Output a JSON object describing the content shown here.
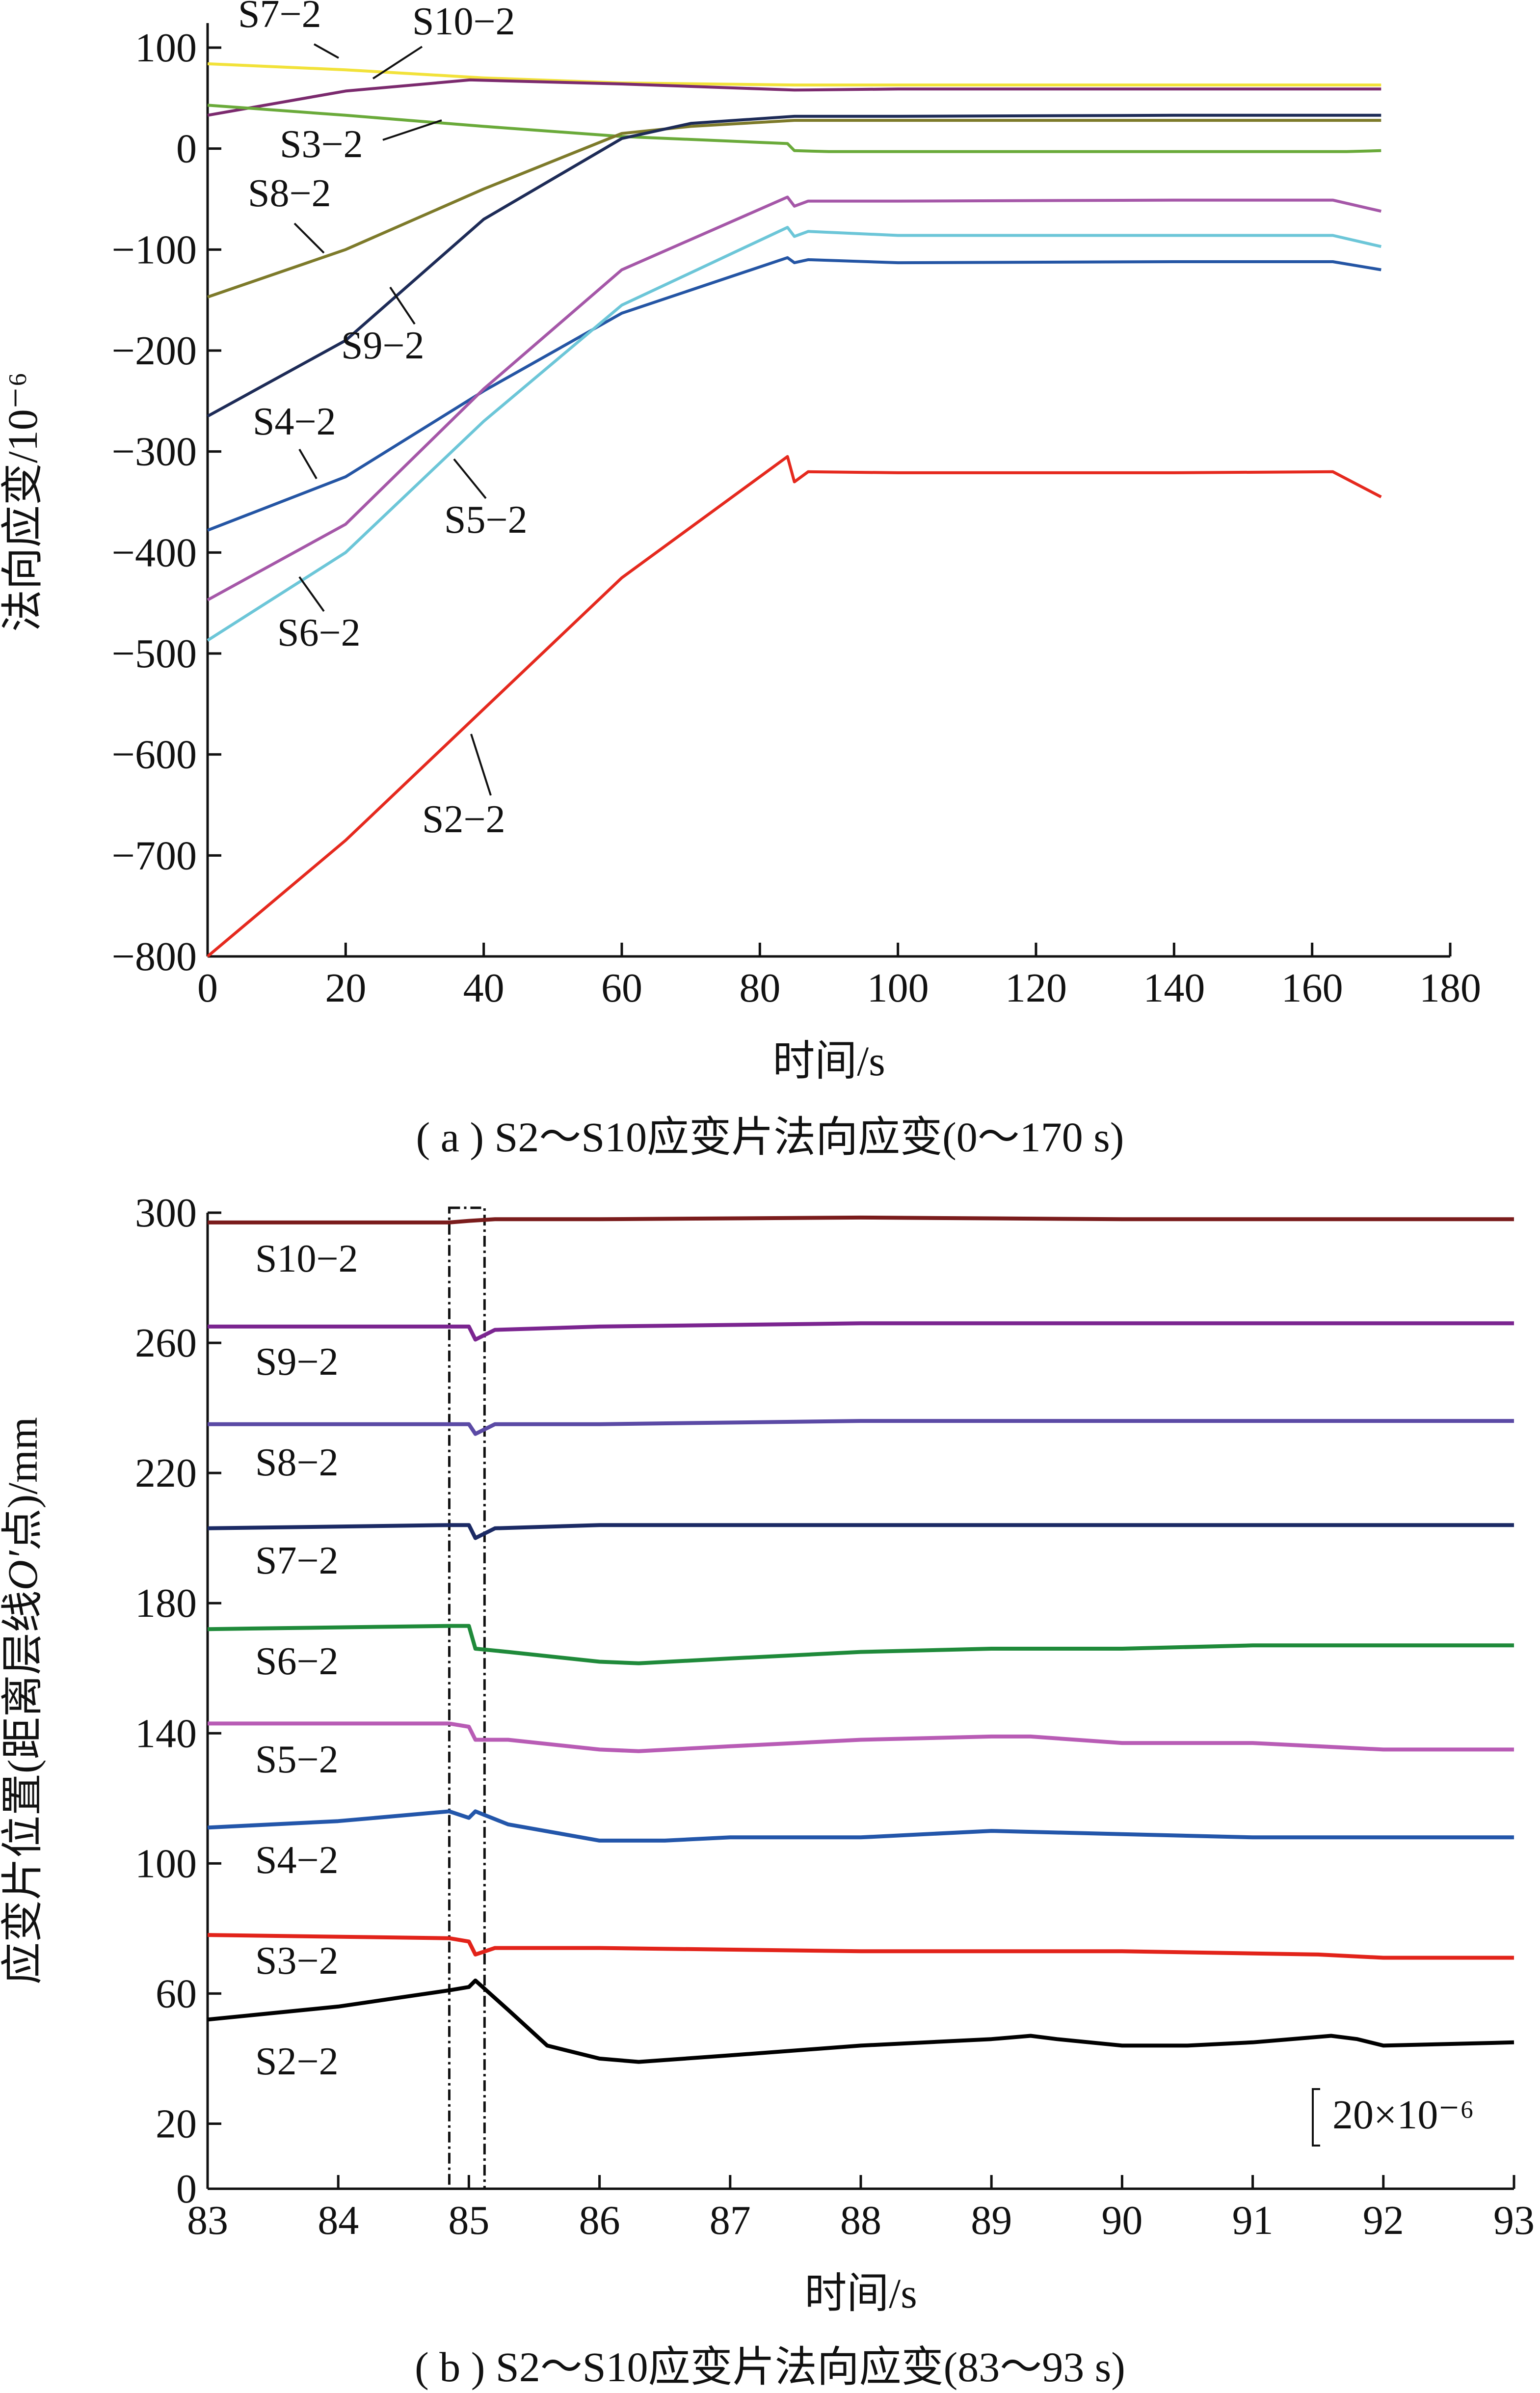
{
  "chart_data": [
    {
      "type": "line",
      "caption": "( a ) S2～S10应变片法向应变(0～170 s)",
      "xlabel": "时间/s",
      "ylabel": "法向应变/10⁻⁶",
      "xlim": [
        0,
        180
      ],
      "ylim": [
        -800,
        100
      ],
      "xticks": [
        "0",
        "20",
        "40",
        "60",
        "80",
        "100",
        "120",
        "140",
        "160",
        "180"
      ],
      "yticks": [
        "100",
        "0",
        "−100",
        "−200",
        "−300",
        "−400",
        "−500",
        "−600",
        "−700",
        "−800"
      ],
      "grid": false,
      "series": [
        {
          "name": "S7−2",
          "color": "#f2e23a",
          "x": [
            0,
            20,
            40,
            60,
            85,
            100,
            140,
            165,
            170
          ],
          "y": [
            84,
            78,
            70,
            65,
            63,
            63,
            63,
            63,
            63
          ]
        },
        {
          "name": "S10−2",
          "color": "#7b2a6e",
          "x": [
            0,
            20,
            38,
            60,
            85,
            100,
            140,
            165,
            170
          ],
          "y": [
            33,
            57,
            68,
            64,
            58,
            59,
            59,
            59,
            59
          ]
        },
        {
          "name": "S3−2",
          "color": "#6aaa3a",
          "x": [
            0,
            20,
            40,
            60,
            84,
            85,
            90,
            140,
            165,
            170
          ],
          "y": [
            43,
            33,
            22,
            12,
            5,
            -2,
            -3,
            -3,
            -3,
            -2
          ]
        },
        {
          "name": "S8−2",
          "color": "#7d7a2a",
          "x": [
            0,
            20,
            40,
            60,
            70,
            85,
            100,
            140,
            165,
            170
          ],
          "y": [
            -147,
            -100,
            -40,
            15,
            22,
            28,
            28,
            28,
            28,
            28
          ]
        },
        {
          "name": "S9−2",
          "color": "#1d2b57",
          "x": [
            0,
            20,
            40,
            60,
            70,
            85,
            100,
            140,
            165,
            170
          ],
          "y": [
            -265,
            -190,
            -70,
            10,
            25,
            32,
            32,
            33,
            33,
            33
          ]
        },
        {
          "name": "S4−2",
          "color": "#2455a4",
          "x": [
            0,
            20,
            40,
            60,
            84,
            85,
            87,
            100,
            140,
            163,
            170
          ],
          "y": [
            -378,
            -325,
            -240,
            -163,
            -108,
            -113,
            -110,
            -113,
            -112,
            -112,
            -120
          ]
        },
        {
          "name": "S5−2",
          "color": "#a557a8",
          "x": [
            0,
            20,
            40,
            60,
            84,
            85,
            87,
            100,
            140,
            163,
            170
          ],
          "y": [
            -447,
            -372,
            -238,
            -120,
            -48,
            -57,
            -52,
            -52,
            -51,
            -51,
            -62
          ]
        },
        {
          "name": "S6−2",
          "color": "#6cc6d8",
          "x": [
            0,
            20,
            40,
            60,
            84,
            85,
            87,
            100,
            140,
            163,
            170
          ],
          "y": [
            -487,
            -400,
            -270,
            -155,
            -78,
            -87,
            -82,
            -86,
            -86,
            -86,
            -97
          ]
        },
        {
          "name": "S2−2",
          "color": "#e5291e",
          "x": [
            0,
            20,
            40,
            60,
            84,
            85,
            87,
            100,
            140,
            163,
            170
          ],
          "y": [
            -800,
            -685,
            -555,
            -425,
            -305,
            -330,
            -320,
            -321,
            -321,
            -320,
            -345
          ]
        }
      ]
    },
    {
      "type": "line",
      "caption": "( b ) S2～S10应变片法向应变(83～93 s)",
      "xlabel": "时间/s",
      "ylabel_parts": [
        "应变片位置(距离层线",
        "O′",
        "点)/mm"
      ],
      "xlim": [
        83,
        93
      ],
      "ylim": [
        0,
        300
      ],
      "xticks": [
        "83",
        "84",
        "85",
        "86",
        "87",
        "88",
        "89",
        "90",
        "91",
        "92",
        "93"
      ],
      "yticks": [
        "300",
        "260",
        "220",
        "180",
        "140",
        "100",
        "60",
        "20",
        "0"
      ],
      "scale_bar": "20×10⁻⁶",
      "grid": false,
      "series": [
        {
          "name": "S10−2",
          "color": "#7a1c1c",
          "x": [
            83,
            84.85,
            85.0,
            85.2,
            86,
            88,
            90,
            92,
            93
          ],
          "y": [
            297,
            297,
            297.5,
            298,
            298,
            298.5,
            298,
            298,
            298
          ]
        },
        {
          "name": "S9−2",
          "color": "#7b2590",
          "x": [
            83,
            84.85,
            85.0,
            85.05,
            85.2,
            86,
            88,
            90,
            92,
            93
          ],
          "y": [
            265,
            265,
            265,
            261,
            264,
            265,
            266,
            266,
            266,
            266
          ]
        },
        {
          "name": "S8−2",
          "color": "#5b4aa5",
          "x": [
            83,
            84.85,
            85.0,
            85.05,
            85.2,
            86,
            88,
            90,
            92,
            93
          ],
          "y": [
            235,
            235,
            235,
            232,
            235,
            235,
            236,
            236,
            236,
            236
          ]
        },
        {
          "name": "S7−2",
          "color": "#1b2a64",
          "x": [
            83,
            84.85,
            85.0,
            85.05,
            85.2,
            86,
            88,
            90,
            92,
            93
          ],
          "y": [
            203,
            204,
            204,
            200,
            203,
            204,
            204,
            204,
            204,
            204
          ]
        },
        {
          "name": "S6−2",
          "color": "#1f8a3a",
          "x": [
            83,
            84.85,
            85.0,
            85.05,
            85.3,
            86,
            86.3,
            87,
            88,
            89,
            90,
            91,
            92,
            93
          ],
          "y": [
            172,
            173,
            173,
            166,
            165,
            162,
            161.5,
            163,
            165,
            166,
            166,
            167,
            167,
            167
          ]
        },
        {
          "name": "S5−2",
          "color": "#b85cb5",
          "x": [
            83,
            84.85,
            85.0,
            85.05,
            85.3,
            86,
            86.3,
            87,
            88,
            89,
            89.3,
            90,
            91,
            92,
            93
          ],
          "y": [
            143,
            143,
            142,
            138,
            138,
            135,
            134.5,
            136,
            138,
            139,
            139,
            137,
            137,
            135,
            135
          ]
        },
        {
          "name": "S4−2",
          "color": "#2356aa",
          "x": [
            83,
            84,
            84.85,
            85.0,
            85.05,
            85.3,
            86,
            86.5,
            87,
            88,
            89,
            90,
            91,
            92,
            93
          ],
          "y": [
            111,
            113,
            116,
            114,
            116,
            112,
            107,
            107,
            108,
            108,
            110,
            109,
            108,
            108,
            108
          ]
        },
        {
          "name": "S3−2",
          "color": "#e2231a",
          "x": [
            83,
            84.85,
            85.0,
            85.05,
            85.2,
            86,
            88,
            90,
            91.5,
            92,
            93
          ],
          "y": [
            78,
            77,
            76,
            72,
            74,
            74,
            73,
            73,
            72,
            71,
            71
          ]
        },
        {
          "name": "S2−2",
          "color": "#000000",
          "x": [
            83,
            84,
            84.85,
            85.0,
            85.05,
            85.3,
            85.6,
            86,
            86.3,
            87,
            88,
            89,
            89.3,
            89.5,
            90,
            90.5,
            91,
            91.6,
            91.8,
            92,
            93
          ],
          "y": [
            52,
            56,
            61,
            62,
            64,
            55,
            44,
            40,
            39,
            41,
            44,
            46,
            47,
            46,
            44,
            44,
            45,
            47,
            46,
            44,
            45
          ]
        }
      ]
    }
  ]
}
